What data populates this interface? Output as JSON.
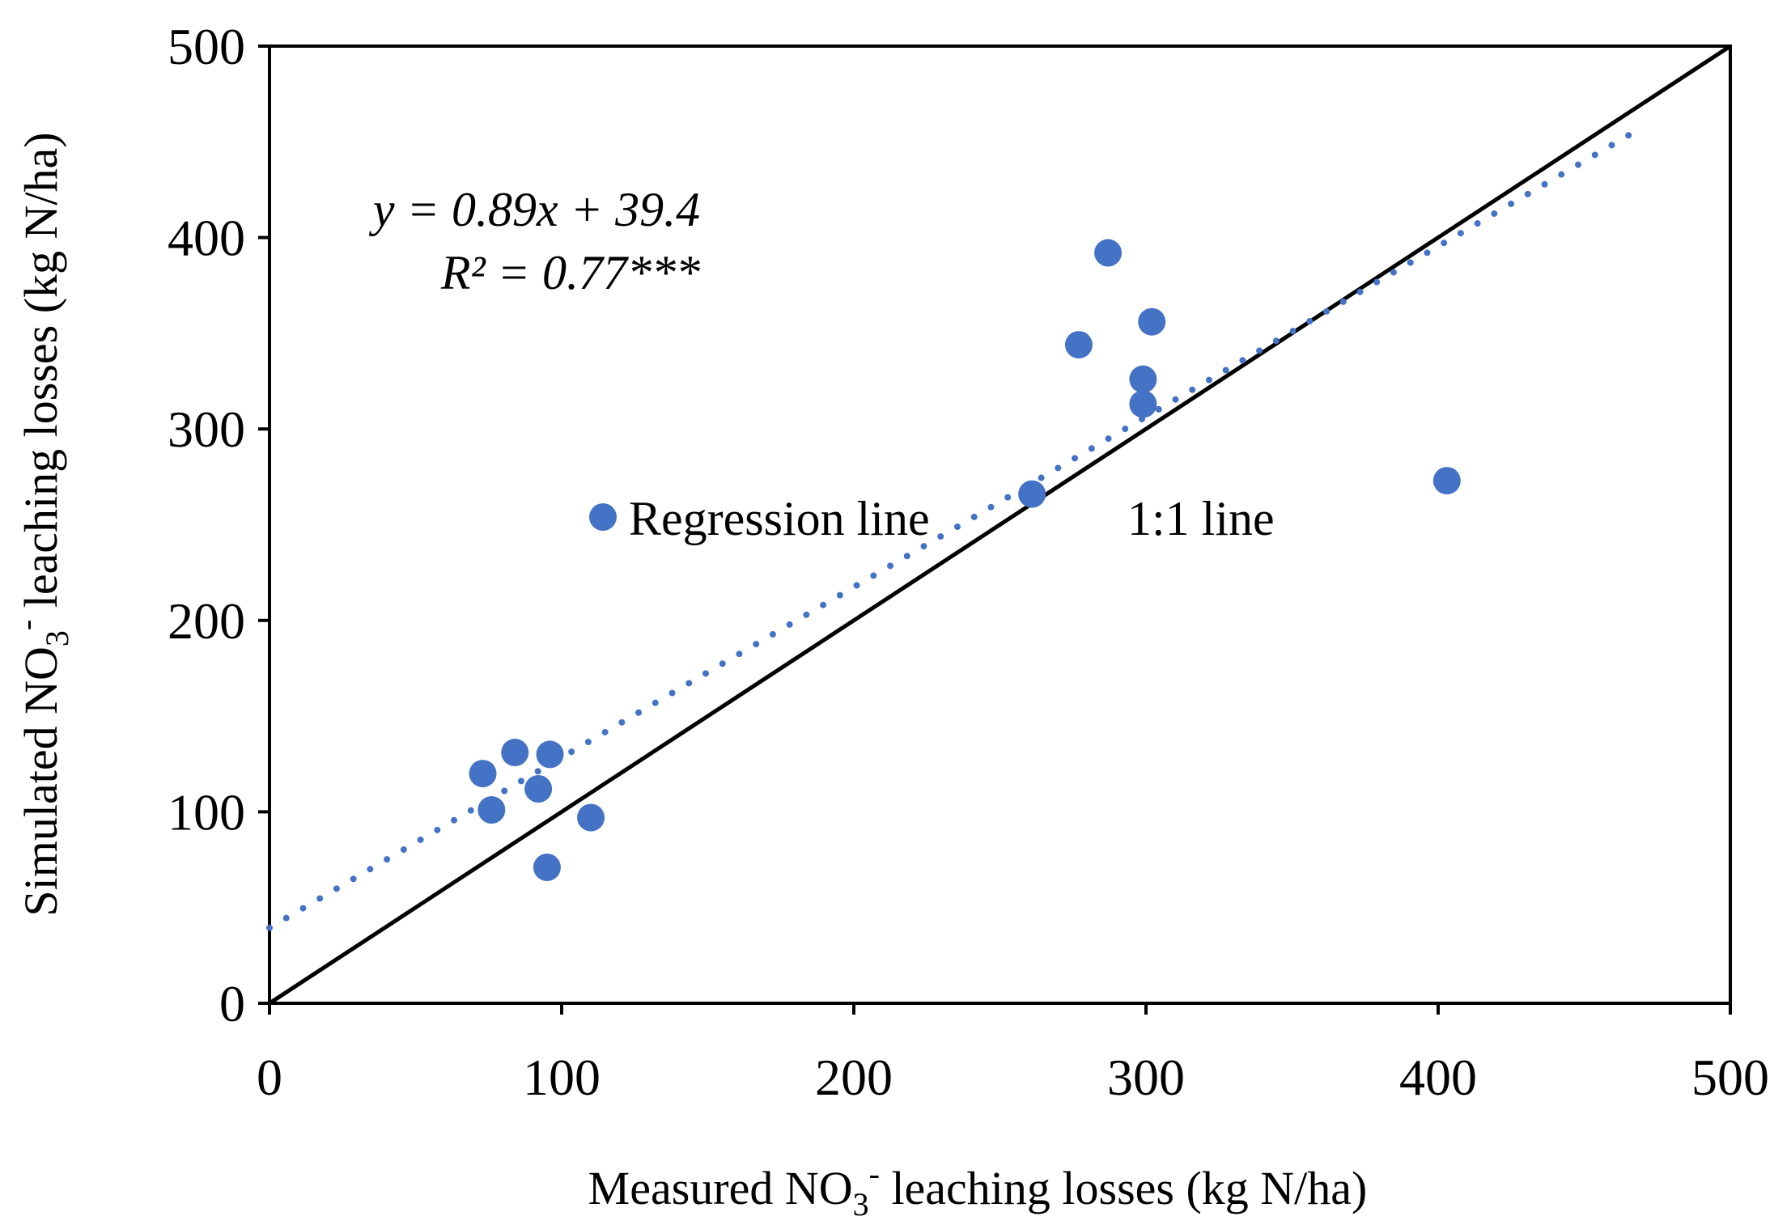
{
  "chart_data": {
    "type": "scatter",
    "title": "",
    "xlabel": {
      "pre": "Measured NO",
      "sub": "3",
      "sup": "-",
      "post": " leaching losses (kg N/ha)"
    },
    "ylabel": {
      "pre": "Simulated NO",
      "sub": "3",
      "sup": "-",
      "post": " leaching losses (kg N/ha)"
    },
    "xlim": [
      0,
      500
    ],
    "ylim": [
      0,
      500
    ],
    "xticks": [
      0,
      100,
      200,
      300,
      400,
      500
    ],
    "yticks": [
      0,
      100,
      200,
      300,
      400,
      500
    ],
    "grid": false,
    "series": [
      {
        "name": "Regression line",
        "color": "#4472C4",
        "x": [
          73,
          76,
          84,
          92,
          95,
          96,
          110,
          261,
          277,
          287,
          299,
          299,
          302,
          403
        ],
        "y": [
          120,
          101,
          131,
          112,
          71,
          130,
          97,
          266,
          344,
          392,
          326,
          313,
          356,
          273
        ]
      }
    ],
    "regression": {
      "slope": 0.89,
      "intercept": 39.4,
      "x_range": [
        0,
        470
      ],
      "style": "dotted",
      "color": "#4472C4"
    },
    "identity_line": {
      "label": "1:1  line",
      "range": [
        0,
        500
      ],
      "color": "#000000"
    },
    "annotations": {
      "equation": "y = 0.89x + 39.4",
      "r2": "R² = 0.77***"
    },
    "legend": {
      "items": [
        "Regression line",
        "1:1  line"
      ],
      "placement": "center"
    }
  }
}
